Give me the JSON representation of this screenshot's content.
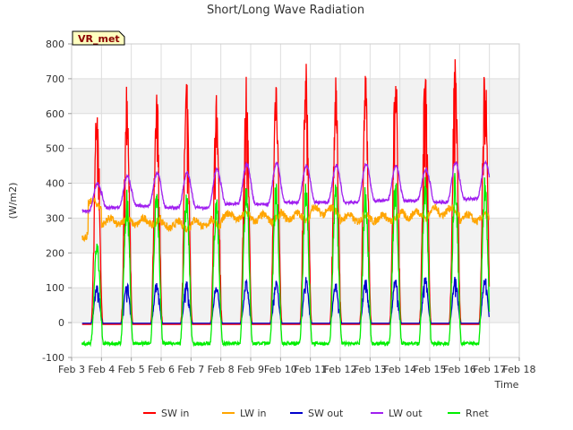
{
  "chart_data": {
    "type": "line",
    "title": "Short/Long Wave Radiation",
    "xlabel": "Time",
    "ylabel": "(W/m2)",
    "badge": "VR_met",
    "ylim": [
      -100,
      800
    ],
    "xlim": [
      0,
      15
    ],
    "yticks": [
      -100,
      0,
      100,
      200,
      300,
      400,
      500,
      600,
      700,
      800
    ],
    "xticks": [
      {
        "v": 0,
        "label": "Feb 3"
      },
      {
        "v": 1,
        "label": "Feb 4"
      },
      {
        "v": 2,
        "label": "Feb 5"
      },
      {
        "v": 3,
        "label": "Feb 6"
      },
      {
        "v": 4,
        "label": "Feb 7"
      },
      {
        "v": 5,
        "label": "Feb 8"
      },
      {
        "v": 6,
        "label": "Feb 9"
      },
      {
        "v": 7,
        "label": "Feb 10"
      },
      {
        "v": 8,
        "label": "Feb 11"
      },
      {
        "v": 9,
        "label": "Feb 12"
      },
      {
        "v": 10,
        "label": "Feb 13"
      },
      {
        "v": 11,
        "label": "Feb 14"
      },
      {
        "v": 12,
        "label": "Feb 15"
      },
      {
        "v": 13,
        "label": "Feb 16"
      },
      {
        "v": 14,
        "label": "Feb 17"
      },
      {
        "v": 15,
        "label": "Feb 18"
      }
    ],
    "x_start": 0.35,
    "x_end": 14.0,
    "grid": true,
    "legend_position": "bottom",
    "series": [
      {
        "name": "SW in",
        "color": "#ff0000",
        "kind": "sw",
        "peaks": [
          600,
          635,
          635,
          645,
          620,
          655,
          670,
          690,
          640,
          660,
          700,
          695,
          710,
          700
        ],
        "night": -5
      },
      {
        "name": "LW in",
        "color": "#ffa500",
        "kind": "lwin",
        "daily": [
          340,
          290,
          290,
          280,
          285,
          305,
          300,
          305,
          320,
          300,
          300,
          310,
          320,
          300,
          330
        ],
        "start": 255
      },
      {
        "name": "SW out",
        "color": "#0000cc",
        "kind": "sw",
        "peaks": [
          100,
          110,
          110,
          110,
          105,
          112,
          112,
          120,
          108,
          118,
          122,
          122,
          122,
          122
        ],
        "night": -2
      },
      {
        "name": "LW out",
        "color": "#a020f0",
        "kind": "lwout",
        "peaks": [
          400,
          420,
          430,
          430,
          440,
          455,
          460,
          450,
          450,
          455,
          450,
          440,
          460,
          460
        ],
        "troughs": [
          320,
          330,
          335,
          330,
          330,
          340,
          340,
          345,
          345,
          345,
          350,
          350,
          345,
          355,
          370
        ]
      },
      {
        "name": "Rnet",
        "color": "#00ee00",
        "kind": "rnet",
        "peaks": [
          235,
          360,
          370,
          370,
          350,
          395,
          390,
          390,
          385,
          375,
          400,
          405,
          415,
          410
        ],
        "night": -60
      }
    ]
  }
}
